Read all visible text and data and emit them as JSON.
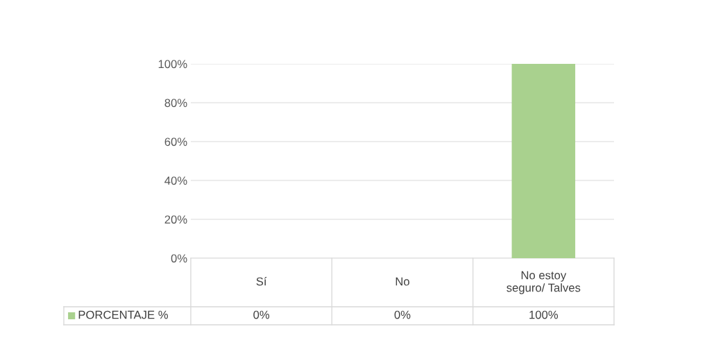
{
  "chart_data": {
    "type": "bar",
    "categories": [
      "Sí",
      "No",
      "No estoy\nseguro/ Talves"
    ],
    "series": [
      {
        "name": "PORCENTAJE %",
        "color": "#a9d18e",
        "values": [
          0,
          0,
          100
        ],
        "value_labels": [
          "0%",
          "0%",
          "100%"
        ]
      }
    ],
    "ylim": [
      0,
      100
    ],
    "yticks": [
      {
        "value": 0,
        "label": "0%"
      },
      {
        "value": 20,
        "label": "20%"
      },
      {
        "value": 40,
        "label": "40%"
      },
      {
        "value": 60,
        "label": "60%"
      },
      {
        "value": 80,
        "label": "80%"
      },
      {
        "value": 100,
        "label": "100%"
      }
    ],
    "grid": "y",
    "legend": "bottom"
  }
}
